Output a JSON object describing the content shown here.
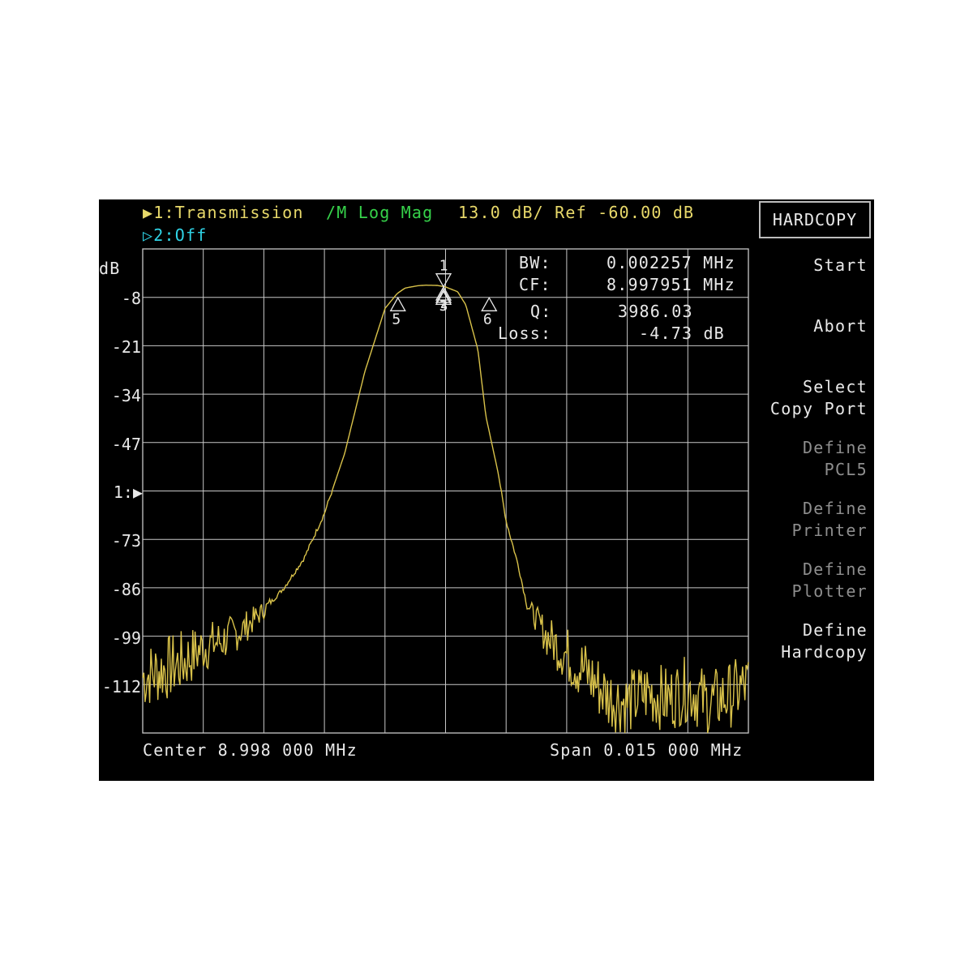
{
  "header": {
    "trace1_label": "▶1:Transmission",
    "trace1_format": "/M Log Mag",
    "trace1_scale": "13.0 dB/ Ref -60.00 dB",
    "trace2_label": "▷2:Off"
  },
  "chart_data": {
    "type": "line",
    "ylabel": "dB",
    "y_ticks": [
      "-8",
      "-21",
      "-34",
      "-47",
      "1:▶",
      "-73",
      "-86",
      "-99",
      "-112"
    ],
    "ylim": [
      -125,
      5
    ],
    "x_center_mhz": 8.998,
    "x_span_mhz": 0.015,
    "xlim_mhz": [
      8.9905,
      9.0055
    ],
    "grid": true,
    "series": [
      {
        "color": "#d9c24a",
        "x_mhz": [
          8.9905,
          8.991,
          8.9915,
          8.992,
          8.9925,
          8.993,
          8.9935,
          8.994,
          8.9945,
          8.995,
          8.9955,
          8.996,
          8.9965,
          8.9968,
          8.997,
          8.9973,
          8.9975,
          8.9978,
          8.998,
          8.9983,
          8.9985,
          8.9988,
          8.999,
          8.9993,
          8.9995,
          8.9998,
          9.0,
          9.0005,
          9.001,
          9.0015,
          9.002,
          9.0025,
          9.003,
          9.0035,
          9.004,
          9.0045,
          9.005,
          9.0055
        ],
        "y_db": [
          -110,
          -108,
          -106,
          -102,
          -100,
          -97,
          -92,
          -86,
          -78,
          -66,
          -50,
          -28,
          -11,
          -7,
          -5.5,
          -4.9,
          -4.73,
          -4.8,
          -5.2,
          -6.5,
          -10,
          -22,
          -40,
          -55,
          -68,
          -80,
          -90,
          -99,
          -104,
          -109,
          -115,
          -117,
          -114,
          -116,
          -113,
          -117,
          -115,
          -112
        ]
      }
    ],
    "markers": [
      {
        "id": "1",
        "x_mhz": 8.99795,
        "y_db": -4.73
      },
      {
        "id": "2",
        "x_mhz": 8.99795,
        "y_db": -4.8
      },
      {
        "id": "3",
        "x_mhz": 8.99795,
        "y_db": -5.0
      },
      {
        "id": "4",
        "x_mhz": 8.99795,
        "y_db": -5.1
      },
      {
        "id": "5",
        "x_mhz": 8.99682,
        "y_db": -7.7
      },
      {
        "id": "6",
        "x_mhz": 8.99908,
        "y_db": -7.7
      }
    ]
  },
  "readout": {
    "bw_label": "BW:",
    "bw_value": "0.002257 MHz",
    "cf_label": "CF:",
    "cf_value": "8.997951 MHz",
    "q_label": "Q:",
    "q_value": "3986.03",
    "loss_label": "Loss:",
    "loss_value": "-4.73 dB"
  },
  "footer": {
    "center": "Center 8.998 000 MHz",
    "span": "Span 0.015 000 MHz"
  },
  "softkeys": {
    "title": "HARDCOPY",
    "start": "Start",
    "abort": "Abort",
    "select_copy_port": "Select\nCopy Port",
    "define_pcl5": "Define\nPCL5",
    "define_printer": "Define\nPrinter",
    "define_plotter": "Define\nPlotter",
    "define_hardcopy": "Define\nHardcopy"
  },
  "colors": {
    "trace": "#d9c24a",
    "grid": "#c8c8c8",
    "background": "#000000"
  }
}
